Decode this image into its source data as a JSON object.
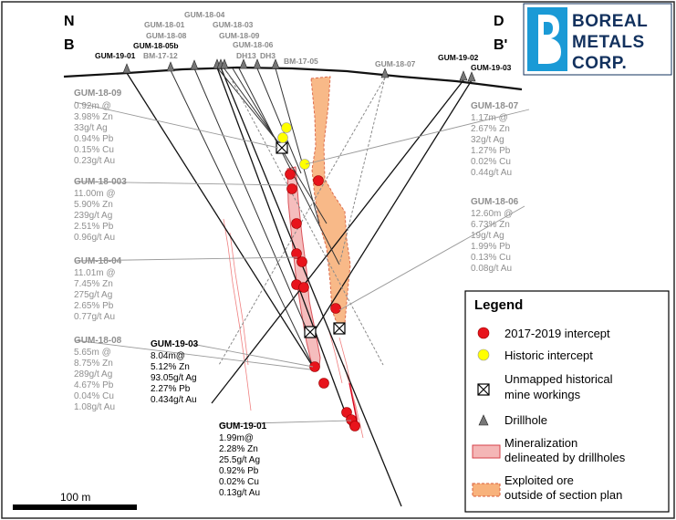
{
  "section": {
    "corners": {
      "left_top": "N",
      "left_bottom": "B",
      "right_top": "D",
      "right_bottom": "B'"
    }
  },
  "logo": {
    "line1": "BOREAL",
    "line2": "METALS",
    "line3": "CORP."
  },
  "collars": [
    {
      "label": "GUM-18-04",
      "dark": false
    },
    {
      "label": "GUM-18-01",
      "dark": false
    },
    {
      "label": "GUM-18-03",
      "dark": false
    },
    {
      "label": "GUM-18-08",
      "dark": false
    },
    {
      "label": "GUM-18-09",
      "dark": false
    },
    {
      "label": "GUM-18-05b",
      "dark": true
    },
    {
      "label": "GUM-18-06",
      "dark": false
    },
    {
      "label": "GUM-19-01",
      "dark": true
    },
    {
      "label": "BM-17-12",
      "dark": false
    },
    {
      "label": "DH13",
      "dark": false
    },
    {
      "label": "DH3",
      "dark": false
    },
    {
      "label": "BM-17-05",
      "dark": false
    },
    {
      "label": "GUM-18-07",
      "dark": false
    },
    {
      "label": "GUM-19-02",
      "dark": true
    },
    {
      "label": "GUM-19-03",
      "dark": true
    }
  ],
  "intercepts_left": [
    {
      "hole": "GUM-18-09",
      "lines": [
        "0.92m @",
        "3.98% Zn",
        "33g/t Ag",
        "0.94% Pb",
        "0.15% Cu",
        "0.23g/t Au"
      ]
    },
    {
      "hole": "GUM-18-003",
      "lines": [
        "11.00m @",
        "5.90% Zn",
        "239g/t Ag",
        "2.51% Pb",
        "0.96g/t Au"
      ]
    },
    {
      "hole": "GUM-18-04",
      "lines": [
        "11.01m @",
        "7.45% Zn",
        "275g/t Ag",
        "2.65% Pb",
        "0.77g/t Au"
      ]
    },
    {
      "hole": "GUM-18-08",
      "lines": [
        "5.65m @",
        "8.75% Zn",
        "289g/t Ag",
        "4.67% Pb",
        "0.04% Cu",
        "1.08g/t Au"
      ]
    }
  ],
  "intercepts_right": [
    {
      "hole": "GUM-18-07",
      "lines": [
        "1.17m @",
        "2.67% Zn",
        "32g/t Ag",
        "1.27% Pb",
        "0.02% Cu",
        "0.44g/t Au"
      ]
    },
    {
      "hole": "GUM-18-06",
      "lines": [
        "12.60m @",
        "6.73% Zn",
        "19g/t Ag",
        "1.99% Pb",
        "0.13% Cu",
        "0.08g/t Au"
      ]
    }
  ],
  "intercepts_new": [
    {
      "hole": "GUM-19-03",
      "lines": [
        "8.04m@",
        "5.12% Zn",
        "93.05g/t Ag",
        "2.27% Pb",
        "0.434g/t Au"
      ]
    },
    {
      "hole": "GUM-19-01",
      "lines": [
        "1.99m@",
        "2.28% Zn",
        "25.5g/t Ag",
        "0.92% Pb",
        "0.02% Cu",
        "0.13g/t Au"
      ]
    }
  ],
  "legend": {
    "title": "Legend",
    "items": [
      {
        "label": "2017-2019 intercept"
      },
      {
        "label": "Historic intercept"
      },
      {
        "label": "Unmapped historical",
        "label2": "mine workings"
      },
      {
        "label": "Drillhole"
      },
      {
        "label": "Mineralization",
        "label2": "delineated by drillholes"
      },
      {
        "label": "Exploited ore",
        "label2": "outside of section plan"
      }
    ]
  },
  "scale": {
    "label": "100 m"
  },
  "colors": {
    "intercept": "#e8141c",
    "historic": "#ffff00",
    "mineralization": "#f4b6b6",
    "exploited": "#f8b27c",
    "logo": "#12315e"
  }
}
